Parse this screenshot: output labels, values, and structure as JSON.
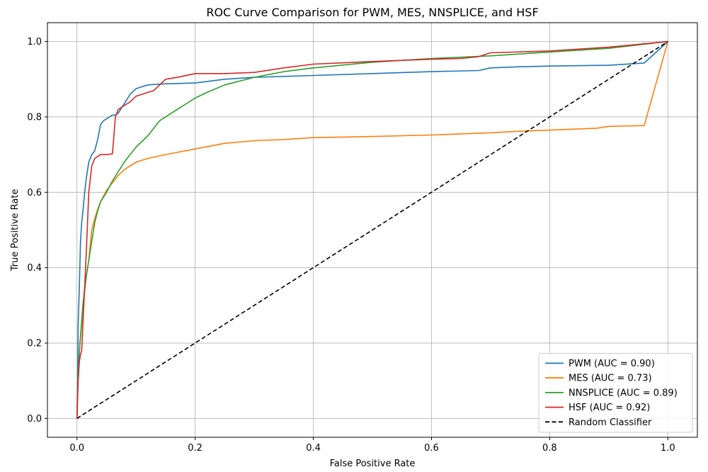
{
  "chart_data": {
    "type": "line",
    "title": "ROC Curve Comparison for PWM, MES, NNSPLICE, and HSF",
    "xlabel": "False Positive Rate",
    "ylabel": "True Positive Rate",
    "xlim": [
      -0.05,
      1.05
    ],
    "ylim": [
      -0.05,
      1.05
    ],
    "xticks": [
      "0.0",
      "0.2",
      "0.4",
      "0.6",
      "0.8",
      "1.0"
    ],
    "yticks": [
      "0.0",
      "0.2",
      "0.4",
      "0.6",
      "0.8",
      "1.0"
    ],
    "grid": true,
    "legend_position": "bottom-right",
    "series": [
      {
        "name": "PWM (AUC = 0.90)",
        "color": "#1f77b4",
        "dash": "solid",
        "x": [
          0,
          0.001,
          0.002,
          0.004,
          0.006,
          0.008,
          0.01,
          0.013,
          0.016,
          0.02,
          0.025,
          0.03,
          0.035,
          0.04,
          0.045,
          0.05,
          0.055,
          0.06,
          0.065,
          0.07,
          0.08,
          0.09,
          0.1,
          0.11,
          0.12,
          0.15,
          0.2,
          0.25,
          0.3,
          0.4,
          0.5,
          0.6,
          0.68,
          0.7,
          0.75,
          0.8,
          0.9,
          0.96,
          1.0
        ],
        "y": [
          0,
          0.1,
          0.25,
          0.35,
          0.47,
          0.52,
          0.55,
          0.6,
          0.64,
          0.68,
          0.7,
          0.71,
          0.74,
          0.78,
          0.79,
          0.795,
          0.8,
          0.805,
          0.805,
          0.81,
          0.835,
          0.86,
          0.875,
          0.88,
          0.885,
          0.888,
          0.89,
          0.9,
          0.905,
          0.91,
          0.915,
          0.92,
          0.923,
          0.93,
          0.933,
          0.935,
          0.937,
          0.943,
          1.0
        ]
      },
      {
        "name": "MES (AUC = 0.73)",
        "color": "#ff7f0e",
        "dash": "solid",
        "x": [
          0,
          0.002,
          0.005,
          0.008,
          0.01,
          0.013,
          0.016,
          0.02,
          0.023,
          0.025,
          0.03,
          0.035,
          0.04,
          0.045,
          0.05,
          0.055,
          0.06,
          0.065,
          0.07,
          0.08,
          0.09,
          0.1,
          0.12,
          0.15,
          0.2,
          0.25,
          0.3,
          0.35,
          0.4,
          0.5,
          0.6,
          0.65,
          0.7,
          0.75,
          0.8,
          0.88,
          0.9,
          0.96,
          1.0
        ],
        "y": [
          0,
          0.12,
          0.2,
          0.25,
          0.3,
          0.35,
          0.38,
          0.42,
          0.47,
          0.5,
          0.53,
          0.555,
          0.575,
          0.59,
          0.605,
          0.615,
          0.625,
          0.635,
          0.645,
          0.66,
          0.67,
          0.68,
          0.69,
          0.7,
          0.715,
          0.73,
          0.737,
          0.74,
          0.745,
          0.748,
          0.752,
          0.755,
          0.758,
          0.762,
          0.765,
          0.77,
          0.775,
          0.777,
          1.0
        ]
      },
      {
        "name": "NNSPLICE (AUC = 0.89)",
        "color": "#2ca02c",
        "dash": "solid",
        "x": [
          0,
          0.002,
          0.005,
          0.008,
          0.01,
          0.013,
          0.016,
          0.02,
          0.025,
          0.03,
          0.035,
          0.04,
          0.05,
          0.06,
          0.07,
          0.08,
          0.09,
          0.1,
          0.12,
          0.14,
          0.16,
          0.18,
          0.2,
          0.22,
          0.25,
          0.3,
          0.35,
          0.4,
          0.5,
          0.6,
          0.7,
          0.8,
          0.9,
          1.0
        ],
        "y": [
          0,
          0.12,
          0.2,
          0.26,
          0.3,
          0.34,
          0.38,
          0.42,
          0.47,
          0.52,
          0.55,
          0.575,
          0.6,
          0.63,
          0.655,
          0.68,
          0.7,
          0.72,
          0.75,
          0.79,
          0.81,
          0.83,
          0.85,
          0.865,
          0.885,
          0.905,
          0.92,
          0.93,
          0.945,
          0.955,
          0.962,
          0.972,
          0.982,
          1.0
        ]
      },
      {
        "name": "HSF (AUC = 0.92)",
        "color": "#d62728",
        "dash": "solid",
        "x": [
          0,
          0.002,
          0.004,
          0.006,
          0.008,
          0.01,
          0.013,
          0.016,
          0.02,
          0.025,
          0.03,
          0.035,
          0.04,
          0.05,
          0.06,
          0.063,
          0.065,
          0.07,
          0.08,
          0.09,
          0.1,
          0.11,
          0.12,
          0.13,
          0.14,
          0.15,
          0.17,
          0.2,
          0.25,
          0.3,
          0.35,
          0.4,
          0.5,
          0.6,
          0.65,
          0.68,
          0.7,
          0.8,
          0.9,
          1.0
        ],
        "y": [
          0,
          0.1,
          0.15,
          0.17,
          0.18,
          0.25,
          0.35,
          0.45,
          0.6,
          0.67,
          0.69,
          0.695,
          0.7,
          0.7,
          0.702,
          0.76,
          0.8,
          0.82,
          0.83,
          0.84,
          0.855,
          0.86,
          0.865,
          0.87,
          0.885,
          0.9,
          0.905,
          0.915,
          0.915,
          0.918,
          0.93,
          0.94,
          0.947,
          0.953,
          0.955,
          0.96,
          0.97,
          0.975,
          0.985,
          1.0
        ]
      },
      {
        "name": "Random Classifier",
        "color": "#000000",
        "dash": "dashed",
        "x": [
          0,
          1
        ],
        "y": [
          0,
          1
        ]
      }
    ]
  }
}
